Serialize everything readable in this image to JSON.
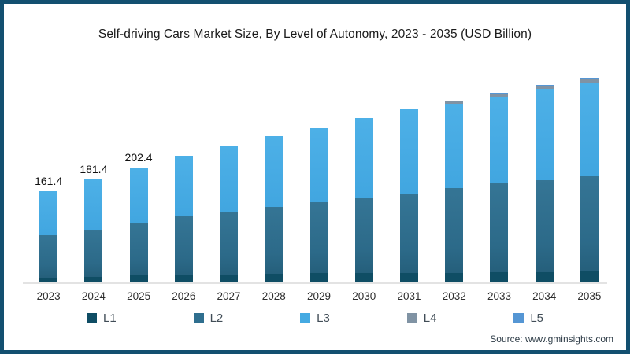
{
  "frame": {
    "border_color": "#135070",
    "background": "#ffffff"
  },
  "header": {
    "title": "Self-driving Cars Market Size, By Level of Autonomy, 2023 - 2035 (USD Billion)"
  },
  "chart_data": {
    "type": "bar",
    "stacked": true,
    "title": "Self-driving Cars Market Size, By Level of Autonomy, 2023 - 2035 (USD Billion)",
    "xlabel": "",
    "ylabel": "USD Billion",
    "ylim": [
      0,
      380
    ],
    "grid": false,
    "legend_position": "bottom",
    "categories": [
      "2023",
      "2024",
      "2025",
      "2026",
      "2027",
      "2028",
      "2029",
      "2030",
      "2031",
      "2032",
      "2033",
      "2034",
      "2035"
    ],
    "series": [
      {
        "name": "L1",
        "color": "#0f4d64",
        "values": [
          8,
          10,
          12.4,
          13,
          14,
          15,
          16,
          17,
          17,
          17,
          18,
          18,
          20
        ]
      },
      {
        "name": "L2",
        "color": "#2f6f8f",
        "values": [
          75,
          82,
          92,
          104,
          111,
          118,
          125,
          131,
          138,
          150,
          158,
          162,
          168
        ]
      },
      {
        "name": "L3",
        "color": "#45aae2",
        "values": [
          78.4,
          89.4,
          98,
          106,
          117,
          125,
          131,
          142,
          150,
          149,
          152,
          161.5,
          165.5
        ]
      },
      {
        "name": "L4",
        "color": "#8093a4",
        "values": [
          0,
          0,
          0,
          0,
          0,
          0,
          0,
          0,
          2,
          3,
          5,
          5.5,
          5.5
        ]
      },
      {
        "name": "L5",
        "color": "#5596d4",
        "values": [
          0,
          0,
          0,
          0,
          0,
          0,
          0,
          0,
          0,
          2,
          2,
          2,
          2
        ]
      }
    ],
    "totals": [
      161.4,
      181.4,
      202.4,
      223,
      242,
      258,
      272,
      290,
      307,
      321,
      335,
      349,
      361
    ],
    "data_labels": [
      "161.4",
      "181.4",
      "202.4",
      "",
      "",
      "",
      "",
      "",
      "",
      "",
      "",
      "",
      ""
    ]
  },
  "footer": {
    "source": "Source: www.gminsights.com"
  }
}
